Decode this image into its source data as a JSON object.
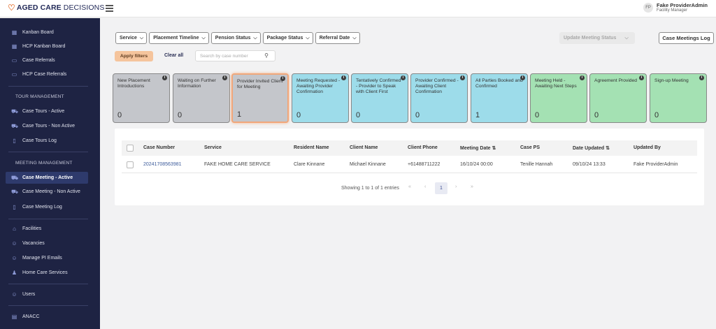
{
  "header": {
    "logo_word1": "AGED CARE",
    "logo_word2": "DECISIONS",
    "user_initials": "FP",
    "user_name": "Fake ProviderAdmin",
    "user_role": "Facility Manager"
  },
  "sidebar": {
    "items_top": [
      "Kanban Board",
      "HCP Kanban Board",
      "Case Referrals",
      "HCP Case Referrals"
    ],
    "tour_heading": "TOUR MANAGEMENT",
    "tour_items": [
      "Case Tours - Active",
      "Case Tours - Non Active",
      "Case Tours Log"
    ],
    "meeting_heading": "MEETING MANAGEMENT",
    "meeting_items": [
      "Case Meeting - Active",
      "Case Meeting - Non Active",
      "Case Meeting Log"
    ],
    "misc_items": [
      "Facilities",
      "Vacancies",
      "Manage PI Emails",
      "Home Care Services"
    ],
    "users": "Users",
    "anacc": "ANACC"
  },
  "filters": {
    "service": "Service",
    "placement_timeline": "Placement Timeline",
    "pension_status": "Pension Status",
    "package_status": "Package Status",
    "referral_date": "Referral Date",
    "update_meeting_status": "Update Meeting Status",
    "case_meetings_log": "Case Meetings Log",
    "apply": "Apply filters",
    "clear": "Clear all",
    "search_placeholder": "Search by case number"
  },
  "cards": [
    {
      "label": "New Placement Introductions",
      "count": "0",
      "color": "grey"
    },
    {
      "label": "Waiting on Further Information",
      "count": "0",
      "color": "grey"
    },
    {
      "label": "Provider Invited Client for Meeting",
      "count": "1",
      "color": "grey"
    },
    {
      "label": "Meeting Requested - Awaiting Provider Confirmation",
      "count": "0",
      "color": "blue"
    },
    {
      "label": "Tentatively Confirmed - Provider to Speak with Client First",
      "count": "0",
      "color": "blue"
    },
    {
      "label": "Provider Confirmed - Awaiting Client Confirmation",
      "count": "0",
      "color": "blue"
    },
    {
      "label": "All Parties Booked and Confirmed",
      "count": "1",
      "color": "blue"
    },
    {
      "label": "Meeting Held - Awaiting Next Steps",
      "count": "0",
      "color": "green"
    },
    {
      "label": "Agreement Provided",
      "count": "0",
      "color": "green"
    },
    {
      "label": "Sign-up Meeting",
      "count": "0",
      "color": "green"
    }
  ],
  "table": {
    "headers": [
      "Case Number",
      "Service",
      "Resident Name",
      "Client Name",
      "Client Phone",
      "Meeting Date",
      "Case PS",
      "Date Updated",
      "Updated By"
    ],
    "rows": [
      [
        "20241708563981",
        "FAKE HOME CARE SERVICE",
        "Clare Kinnane",
        "Michael Kinnane",
        "+61488711222",
        "16/10/24 00:00",
        "Tenille Hannah",
        "09/10/24 13:33",
        "Fake ProviderAdmin"
      ]
    ],
    "showing": "Showing 1 to 1 of 1 entries",
    "current_page": "1"
  },
  "colors": {
    "sidebar_bg": "#1e2343",
    "accent_orange": "#f5c49c",
    "card_grey": "#c4c6cb",
    "card_blue": "#9ddcea",
    "card_green": "#a4e1b3",
    "link_blue": "#3b5a9a"
  },
  "icons": {
    "sort": "sort-icon",
    "info": "info-icon"
  }
}
